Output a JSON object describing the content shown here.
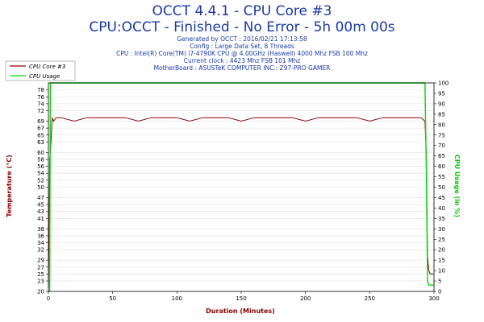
{
  "header": {
    "title": "OCCT 4.4.1 - CPU Core #3",
    "subtitle": "CPU:OCCT - Finished - No Error - 5h 00m 00s",
    "info": [
      "Generated by OCCT : 2016/02/21 17:13:58",
      "Config : Large Data Set, 8 Threads",
      "CPU : Intel(R) Core(TM) i7-4790K CPU @ 4.00GHz (Haswell) 4000 Mhz FSB 100 Mhz",
      "Current clock : 4423 Mhz FSB 101 Mhz",
      "MotherBoard : ASUSTeK COMPUTER INC.: Z97-PRO GAMER"
    ]
  },
  "chart_data": {
    "type": "line",
    "xlabel": "Duration (Minutes)",
    "ylabel": "Temperature (°C)",
    "y2label": "CPU Usage (in %)",
    "xlim": [
      0,
      300
    ],
    "ylim": [
      20,
      80
    ],
    "y2lim": [
      0,
      100
    ],
    "xticks": [
      0,
      50,
      100,
      150,
      200,
      250,
      300
    ],
    "yticks": [
      20,
      23,
      25,
      27,
      29,
      32,
      34,
      36,
      38,
      41,
      43,
      45,
      47,
      50,
      52,
      54,
      56,
      58,
      60,
      63,
      65,
      67,
      69,
      72,
      74,
      76,
      78
    ],
    "y2ticks": [
      0,
      5,
      10,
      15,
      20,
      25,
      30,
      35,
      40,
      45,
      50,
      55,
      60,
      65,
      70,
      75,
      80,
      85,
      90,
      95,
      100
    ],
    "legend": "top-left",
    "series": [
      {
        "name": "CPU Core #3",
        "axis": "left",
        "color": "#8b0000",
        "x": [
          0,
          1,
          2,
          3,
          4,
          6,
          10,
          20,
          30,
          40,
          50,
          60,
          70,
          80,
          90,
          100,
          110,
          120,
          130,
          140,
          150,
          160,
          170,
          180,
          190,
          200,
          210,
          220,
          230,
          240,
          250,
          260,
          270,
          280,
          290,
          293,
          294,
          295,
          296,
          297,
          298,
          299,
          300
        ],
        "y": [
          21,
          58,
          63,
          70,
          69,
          70,
          70,
          69,
          70,
          70,
          70,
          70,
          69,
          70,
          70,
          70,
          69,
          70,
          70,
          70,
          69,
          70,
          70,
          70,
          70,
          69,
          70,
          70,
          70,
          70,
          69,
          70,
          70,
          70,
          70,
          69,
          60,
          30,
          26,
          25,
          25,
          25,
          25
        ]
      },
      {
        "name": "CPU Usage",
        "axis": "right",
        "color": "#00dd00",
        "x": [
          0,
          1,
          1.5,
          293,
          294,
          295,
          296,
          300
        ],
        "y": [
          0,
          0,
          100,
          100,
          60,
          5,
          3,
          3
        ]
      }
    ]
  }
}
